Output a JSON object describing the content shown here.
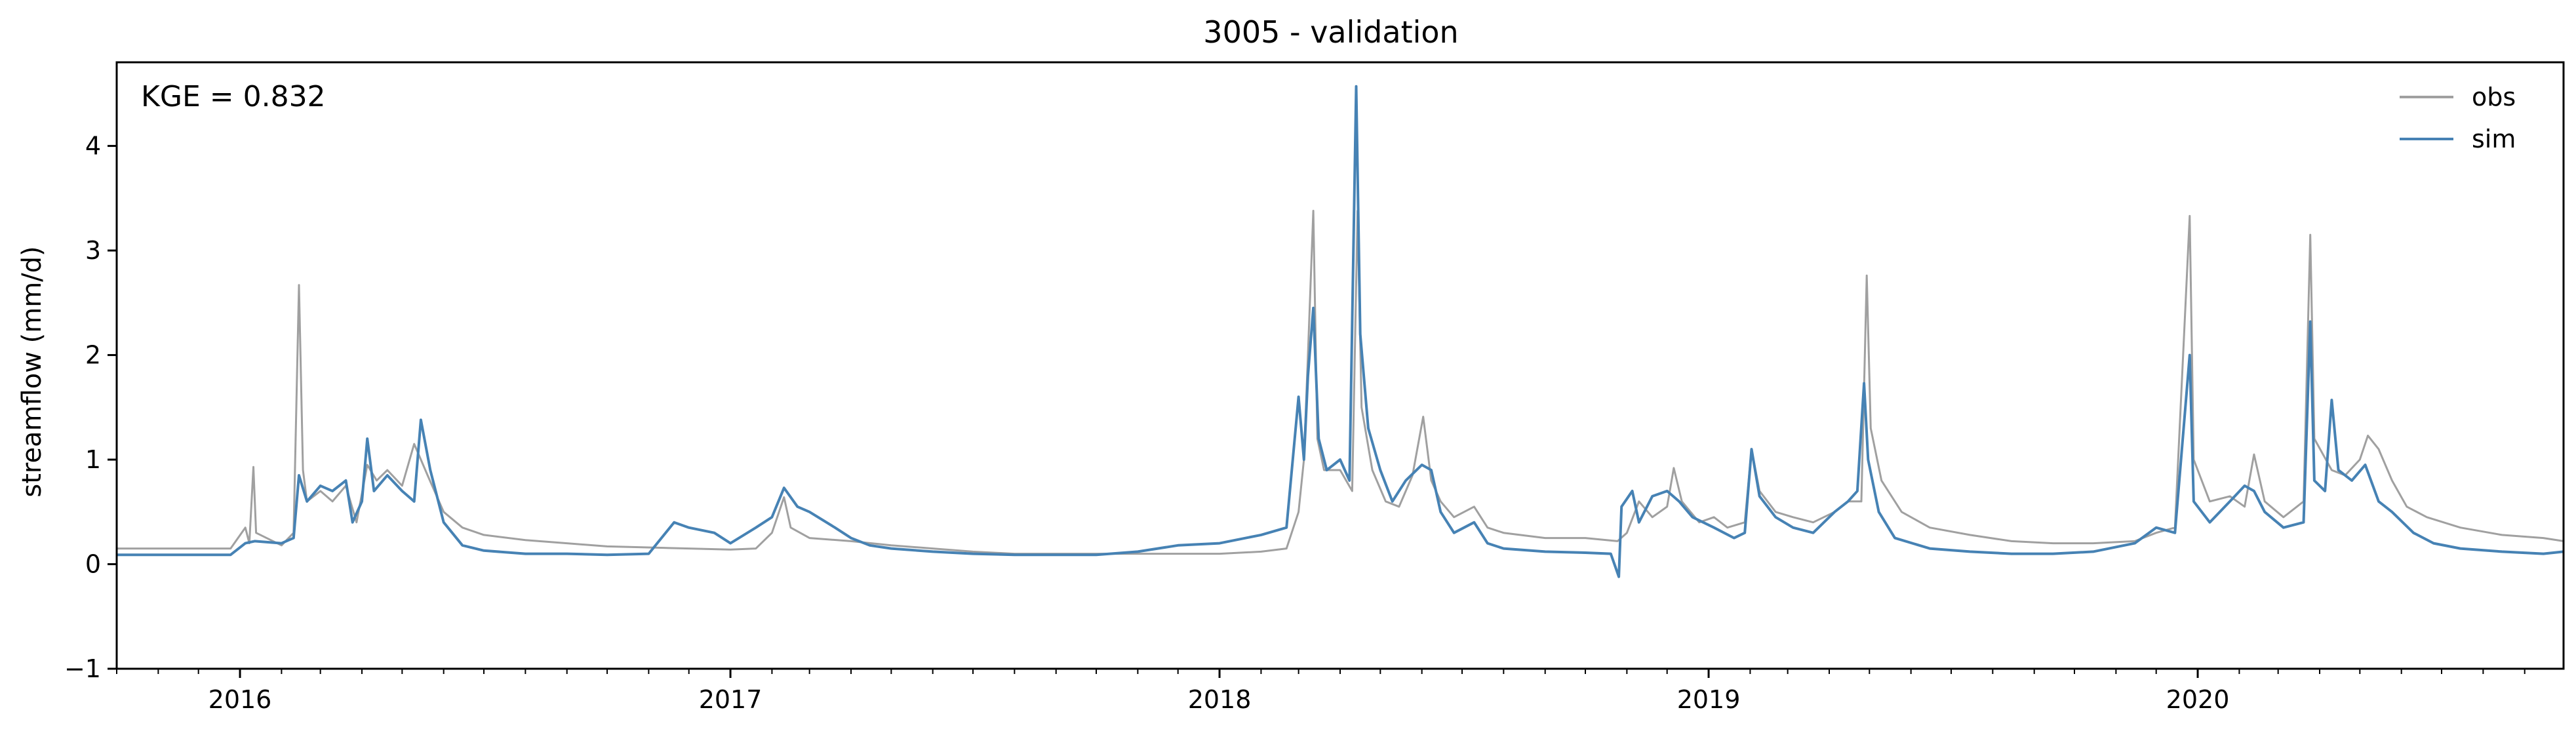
{
  "chart_data": {
    "type": "line",
    "title": "3005 - validation",
    "xlabel": "",
    "ylabel": "streamflow (mm/d)",
    "annotation": "KGE = 0.832",
    "xlim": [
      "2015-10-01",
      "2020-09-30"
    ],
    "ylim": [
      -1,
      4.8
    ],
    "yticks": [
      -1,
      0,
      1,
      2,
      3,
      4
    ],
    "ytick_labels": [
      "−1",
      "0",
      "1",
      "2",
      "3",
      "4"
    ],
    "xticks": [
      "2016-01-01",
      "2017-01-01",
      "2018-01-01",
      "2019-01-01",
      "2020-01-01"
    ],
    "xtick_labels": [
      "2016",
      "2017",
      "2018",
      "2019",
      "2020"
    ],
    "grid": false,
    "legend_position": "top-right",
    "colors": {
      "obs": "#a0a0a0",
      "sim": "#4682b4"
    },
    "series": [
      {
        "name": "obs",
        "points": [
          [
            "2015-10-01",
            0.15
          ],
          [
            "2015-11-15",
            0.15
          ],
          [
            "2015-12-25",
            0.15
          ],
          [
            "2016-01-05",
            0.35
          ],
          [
            "2016-01-08",
            0.2
          ],
          [
            "2016-01-11",
            0.93
          ],
          [
            "2016-01-13",
            0.3
          ],
          [
            "2016-02-01",
            0.18
          ],
          [
            "2016-02-10",
            0.3
          ],
          [
            "2016-02-14",
            2.67
          ],
          [
            "2016-02-17",
            0.9
          ],
          [
            "2016-02-20",
            0.6
          ],
          [
            "2016-03-01",
            0.7
          ],
          [
            "2016-03-10",
            0.6
          ],
          [
            "2016-03-20",
            0.75
          ],
          [
            "2016-03-28",
            0.4
          ],
          [
            "2016-04-05",
            0.95
          ],
          [
            "2016-04-12",
            0.8
          ],
          [
            "2016-04-20",
            0.9
          ],
          [
            "2016-05-01",
            0.75
          ],
          [
            "2016-05-10",
            1.15
          ],
          [
            "2016-05-20",
            0.85
          ],
          [
            "2016-06-01",
            0.5
          ],
          [
            "2016-06-15",
            0.35
          ],
          [
            "2016-07-01",
            0.28
          ],
          [
            "2016-08-01",
            0.23
          ],
          [
            "2016-09-01",
            0.2
          ],
          [
            "2016-10-01",
            0.17
          ],
          [
            "2016-11-01",
            0.16
          ],
          [
            "2016-12-01",
            0.15
          ],
          [
            "2017-01-01",
            0.14
          ],
          [
            "2017-01-20",
            0.15
          ],
          [
            "2017-02-01",
            0.3
          ],
          [
            "2017-02-10",
            0.64
          ],
          [
            "2017-02-15",
            0.35
          ],
          [
            "2017-03-01",
            0.25
          ],
          [
            "2017-04-01",
            0.22
          ],
          [
            "2017-05-01",
            0.18
          ],
          [
            "2017-06-01",
            0.15
          ],
          [
            "2017-07-01",
            0.12
          ],
          [
            "2017-08-01",
            0.1
          ],
          [
            "2017-09-01",
            0.1
          ],
          [
            "2017-10-01",
            0.1
          ],
          [
            "2017-11-01",
            0.1
          ],
          [
            "2017-12-01",
            0.1
          ],
          [
            "2018-01-01",
            0.1
          ],
          [
            "2018-02-01",
            0.12
          ],
          [
            "2018-02-20",
            0.15
          ],
          [
            "2018-03-01",
            0.5
          ],
          [
            "2018-03-05",
            1.0
          ],
          [
            "2018-03-08",
            2.0
          ],
          [
            "2018-03-12",
            3.38
          ],
          [
            "2018-03-15",
            1.2
          ],
          [
            "2018-03-20",
            0.9
          ],
          [
            "2018-04-01",
            0.9
          ],
          [
            "2018-04-10",
            0.7
          ],
          [
            "2018-04-14",
            3.38
          ],
          [
            "2018-04-17",
            1.5
          ],
          [
            "2018-04-25",
            0.9
          ],
          [
            "2018-05-05",
            0.6
          ],
          [
            "2018-05-15",
            0.55
          ],
          [
            "2018-05-25",
            0.85
          ],
          [
            "2018-06-02",
            1.41
          ],
          [
            "2018-06-08",
            0.8
          ],
          [
            "2018-06-15",
            0.6
          ],
          [
            "2018-06-25",
            0.45
          ],
          [
            "2018-07-10",
            0.55
          ],
          [
            "2018-07-20",
            0.35
          ],
          [
            "2018-08-01",
            0.3
          ],
          [
            "2018-09-01",
            0.25
          ],
          [
            "2018-10-01",
            0.25
          ],
          [
            "2018-10-25",
            0.22
          ],
          [
            "2018-11-01",
            0.3
          ],
          [
            "2018-11-10",
            0.6
          ],
          [
            "2018-11-20",
            0.45
          ],
          [
            "2018-12-01",
            0.55
          ],
          [
            "2018-12-06",
            0.92
          ],
          [
            "2018-12-12",
            0.6
          ],
          [
            "2018-12-25",
            0.4
          ],
          [
            "2019-01-05",
            0.45
          ],
          [
            "2019-01-15",
            0.35
          ],
          [
            "2019-01-28",
            0.4
          ],
          [
            "2019-02-02",
            1.1
          ],
          [
            "2019-02-08",
            0.7
          ],
          [
            "2019-02-20",
            0.5
          ],
          [
            "2019-03-05",
            0.45
          ],
          [
            "2019-03-20",
            0.4
          ],
          [
            "2019-04-05",
            0.5
          ],
          [
            "2019-04-15",
            0.6
          ],
          [
            "2019-04-25",
            0.6
          ],
          [
            "2019-04-29",
            2.76
          ],
          [
            "2019-05-02",
            1.3
          ],
          [
            "2019-05-10",
            0.8
          ],
          [
            "2019-05-25",
            0.5
          ],
          [
            "2019-06-15",
            0.35
          ],
          [
            "2019-07-15",
            0.28
          ],
          [
            "2019-08-15",
            0.22
          ],
          [
            "2019-09-15",
            0.2
          ],
          [
            "2019-10-15",
            0.2
          ],
          [
            "2019-11-15",
            0.22
          ],
          [
            "2019-12-01",
            0.3
          ],
          [
            "2019-12-15",
            0.35
          ],
          [
            "2019-12-26",
            3.33
          ],
          [
            "2019-12-29",
            1.0
          ],
          [
            "2020-01-10",
            0.6
          ],
          [
            "2020-01-25",
            0.65
          ],
          [
            "2020-02-05",
            0.55
          ],
          [
            "2020-02-12",
            1.05
          ],
          [
            "2020-02-20",
            0.6
          ],
          [
            "2020-03-05",
            0.45
          ],
          [
            "2020-03-20",
            0.6
          ],
          [
            "2020-03-25",
            3.15
          ],
          [
            "2020-03-28",
            1.2
          ],
          [
            "2020-04-10",
            0.9
          ],
          [
            "2020-04-20",
            0.85
          ],
          [
            "2020-05-01",
            1.0
          ],
          [
            "2020-05-07",
            1.23
          ],
          [
            "2020-05-15",
            1.1
          ],
          [
            "2020-05-25",
            0.8
          ],
          [
            "2020-06-05",
            0.55
          ],
          [
            "2020-06-20",
            0.45
          ],
          [
            "2020-07-15",
            0.35
          ],
          [
            "2020-08-15",
            0.28
          ],
          [
            "2020-09-15",
            0.25
          ],
          [
            "2020-09-30",
            0.22
          ]
        ]
      },
      {
        "name": "sim",
        "points": [
          [
            "2015-10-01",
            0.09
          ],
          [
            "2015-11-15",
            0.09
          ],
          [
            "2015-12-25",
            0.09
          ],
          [
            "2016-01-05",
            0.2
          ],
          [
            "2016-01-12",
            0.22
          ],
          [
            "2016-02-01",
            0.2
          ],
          [
            "2016-02-10",
            0.25
          ],
          [
            "2016-02-14",
            0.85
          ],
          [
            "2016-02-20",
            0.6
          ],
          [
            "2016-03-01",
            0.75
          ],
          [
            "2016-03-10",
            0.7
          ],
          [
            "2016-03-20",
            0.8
          ],
          [
            "2016-03-25",
            0.4
          ],
          [
            "2016-04-01",
            0.6
          ],
          [
            "2016-04-05",
            1.2
          ],
          [
            "2016-04-10",
            0.7
          ],
          [
            "2016-04-20",
            0.85
          ],
          [
            "2016-05-01",
            0.7
          ],
          [
            "2016-05-10",
            0.6
          ],
          [
            "2016-05-15",
            1.38
          ],
          [
            "2016-05-22",
            0.9
          ],
          [
            "2016-06-01",
            0.4
          ],
          [
            "2016-06-15",
            0.18
          ],
          [
            "2016-07-01",
            0.13
          ],
          [
            "2016-08-01",
            0.1
          ],
          [
            "2016-09-01",
            0.1
          ],
          [
            "2016-10-01",
            0.09
          ],
          [
            "2016-11-01",
            0.1
          ],
          [
            "2016-11-20",
            0.4
          ],
          [
            "2016-12-01",
            0.35
          ],
          [
            "2016-12-20",
            0.3
          ],
          [
            "2017-01-01",
            0.2
          ],
          [
            "2017-01-20",
            0.35
          ],
          [
            "2017-02-01",
            0.45
          ],
          [
            "2017-02-10",
            0.73
          ],
          [
            "2017-02-20",
            0.55
          ],
          [
            "2017-03-01",
            0.5
          ],
          [
            "2017-03-20",
            0.35
          ],
          [
            "2017-04-01",
            0.25
          ],
          [
            "2017-04-15",
            0.18
          ],
          [
            "2017-05-01",
            0.15
          ],
          [
            "2017-06-01",
            0.12
          ],
          [
            "2017-07-01",
            0.1
          ],
          [
            "2017-08-01",
            0.09
          ],
          [
            "2017-09-01",
            0.09
          ],
          [
            "2017-10-01",
            0.09
          ],
          [
            "2017-11-01",
            0.12
          ],
          [
            "2017-12-01",
            0.18
          ],
          [
            "2018-01-01",
            0.2
          ],
          [
            "2018-02-01",
            0.28
          ],
          [
            "2018-02-20",
            0.35
          ],
          [
            "2018-03-01",
            1.6
          ],
          [
            "2018-03-05",
            1.0
          ],
          [
            "2018-03-08",
            1.8
          ],
          [
            "2018-03-12",
            2.45
          ],
          [
            "2018-03-16",
            1.2
          ],
          [
            "2018-03-22",
            0.9
          ],
          [
            "2018-04-01",
            1.0
          ],
          [
            "2018-04-08",
            0.8
          ],
          [
            "2018-04-13",
            4.57
          ],
          [
            "2018-04-16",
            2.2
          ],
          [
            "2018-04-22",
            1.3
          ],
          [
            "2018-05-01",
            0.9
          ],
          [
            "2018-05-10",
            0.6
          ],
          [
            "2018-05-20",
            0.8
          ],
          [
            "2018-06-01",
            0.95
          ],
          [
            "2018-06-08",
            0.9
          ],
          [
            "2018-06-15",
            0.5
          ],
          [
            "2018-06-25",
            0.3
          ],
          [
            "2018-07-10",
            0.4
          ],
          [
            "2018-07-20",
            0.2
          ],
          [
            "2018-08-01",
            0.15
          ],
          [
            "2018-09-01",
            0.12
          ],
          [
            "2018-10-01",
            0.11
          ],
          [
            "2018-10-20",
            0.1
          ],
          [
            "2018-10-26",
            -0.12
          ],
          [
            "2018-10-28",
            0.55
          ],
          [
            "2018-11-05",
            0.7
          ],
          [
            "2018-11-10",
            0.4
          ],
          [
            "2018-11-20",
            0.65
          ],
          [
            "2018-12-01",
            0.7
          ],
          [
            "2018-12-10",
            0.6
          ],
          [
            "2018-12-20",
            0.45
          ],
          [
            "2019-01-05",
            0.35
          ],
          [
            "2019-01-20",
            0.25
          ],
          [
            "2019-01-28",
            0.3
          ],
          [
            "2019-02-02",
            1.1
          ],
          [
            "2019-02-08",
            0.65
          ],
          [
            "2019-02-20",
            0.45
          ],
          [
            "2019-03-05",
            0.35
          ],
          [
            "2019-03-20",
            0.3
          ],
          [
            "2019-04-05",
            0.5
          ],
          [
            "2019-04-15",
            0.6
          ],
          [
            "2019-04-22",
            0.7
          ],
          [
            "2019-04-27",
            1.73
          ],
          [
            "2019-04-30",
            1.0
          ],
          [
            "2019-05-08",
            0.5
          ],
          [
            "2019-05-20",
            0.25
          ],
          [
            "2019-06-15",
            0.15
          ],
          [
            "2019-07-15",
            0.12
          ],
          [
            "2019-08-15",
            0.1
          ],
          [
            "2019-09-15",
            0.1
          ],
          [
            "2019-10-15",
            0.12
          ],
          [
            "2019-11-15",
            0.2
          ],
          [
            "2019-12-01",
            0.35
          ],
          [
            "2019-12-15",
            0.3
          ],
          [
            "2019-12-26",
            2.0
          ],
          [
            "2019-12-29",
            0.6
          ],
          [
            "2020-01-10",
            0.4
          ],
          [
            "2020-01-25",
            0.6
          ],
          [
            "2020-02-05",
            0.75
          ],
          [
            "2020-02-12",
            0.7
          ],
          [
            "2020-02-20",
            0.5
          ],
          [
            "2020-03-05",
            0.35
          ],
          [
            "2020-03-20",
            0.4
          ],
          [
            "2020-03-25",
            2.32
          ],
          [
            "2020-03-28",
            0.8
          ],
          [
            "2020-04-05",
            0.7
          ],
          [
            "2020-04-10",
            1.57
          ],
          [
            "2020-04-15",
            0.9
          ],
          [
            "2020-04-25",
            0.8
          ],
          [
            "2020-05-05",
            0.95
          ],
          [
            "2020-05-15",
            0.6
          ],
          [
            "2020-05-25",
            0.5
          ],
          [
            "2020-06-10",
            0.3
          ],
          [
            "2020-06-25",
            0.2
          ],
          [
            "2020-07-15",
            0.15
          ],
          [
            "2020-08-15",
            0.12
          ],
          [
            "2020-09-15",
            0.1
          ],
          [
            "2020-09-30",
            0.12
          ]
        ]
      }
    ]
  }
}
